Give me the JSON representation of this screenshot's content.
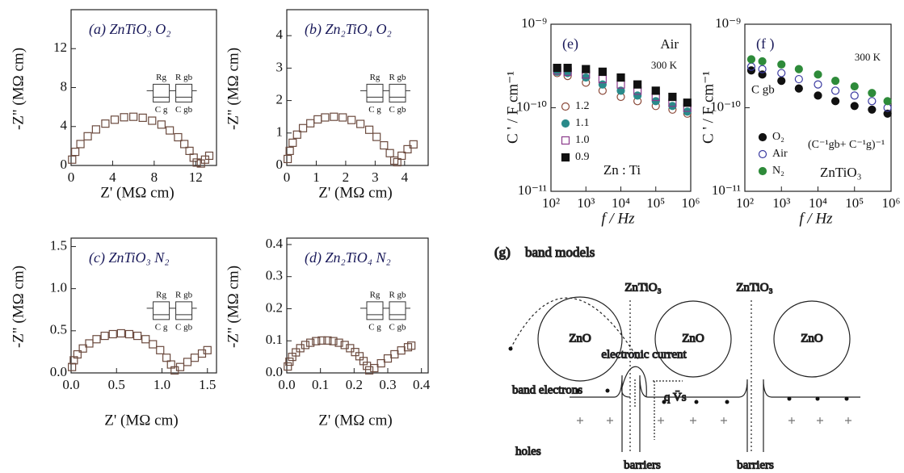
{
  "chart_data": [
    {
      "type": "scatter",
      "title": "(a) ZnTiO₃  O₂",
      "x_label": "Z' (MΩ cm)",
      "y_label": "-Z\" (MΩ cm)",
      "xlim": [
        0,
        14
      ],
      "ylim": [
        0,
        16
      ],
      "xticks": [
        0,
        4,
        8,
        12
      ],
      "yticks": [
        0,
        4,
        8,
        12
      ],
      "circuit_labels": [
        "Rg",
        "R gb",
        "C g",
        "C gb"
      ],
      "series": [
        {
          "color": "#6b4a3e",
          "marker": "open-square",
          "x": [
            0.1,
            0.4,
            0.9,
            1.6,
            2.4,
            3.3,
            4.2,
            5.1,
            6.0,
            6.9,
            7.8,
            8.7,
            9.5,
            10.3,
            10.9,
            11.4,
            11.8,
            12.1,
            12.5,
            12.9,
            13.3
          ],
          "values": [
            0.6,
            1.4,
            2.2,
            3.0,
            3.7,
            4.3,
            4.7,
            4.95,
            5.0,
            4.9,
            4.6,
            4.2,
            3.6,
            2.9,
            2.2,
            1.5,
            0.8,
            0.3,
            0.2,
            0.6,
            1.0
          ]
        }
      ]
    },
    {
      "type": "scatter",
      "title": "(b) Zn₂TiO₄  O₂",
      "x_label": "Z' (MΩ cm)",
      "y_label": "-Z\" (MΩ cm)",
      "xlim": [
        0,
        4.8
      ],
      "ylim": [
        0,
        4.8
      ],
      "xticks": [
        0,
        1,
        2,
        3,
        4
      ],
      "yticks": [
        0,
        1,
        2,
        3,
        4
      ],
      "circuit_labels": [
        "Rg",
        "R gb",
        "C g",
        "C gb"
      ],
      "series": [
        {
          "color": "#6b4a3e",
          "marker": "open-square",
          "x": [
            0.03,
            0.1,
            0.2,
            0.35,
            0.55,
            0.8,
            1.05,
            1.3,
            1.6,
            1.9,
            2.2,
            2.5,
            2.8,
            3.05,
            3.3,
            3.5,
            3.65,
            3.75,
            3.9,
            4.1,
            4.3
          ],
          "values": [
            0.2,
            0.45,
            0.7,
            0.95,
            1.15,
            1.3,
            1.42,
            1.48,
            1.5,
            1.48,
            1.4,
            1.28,
            1.1,
            0.88,
            0.62,
            0.38,
            0.15,
            0.1,
            0.3,
            0.5,
            0.65
          ]
        }
      ]
    },
    {
      "type": "scatter",
      "title": "(c) ZnTiO₃  N₂",
      "x_label": "Z' (MΩ cm)",
      "y_label": "-Z\" (MΩ cm)",
      "xlim": [
        0,
        1.6
      ],
      "ylim": [
        0,
        1.6
      ],
      "xticks": [
        {
          "value": 0,
          "label": "0.0"
        },
        0.5,
        {
          "value": 1,
          "label": "1.0"
        },
        1.5
      ],
      "yticks": [
        {
          "value": 0,
          "label": "0.0"
        },
        0.5,
        {
          "value": 1,
          "label": "1.0"
        },
        1.5
      ],
      "circuit_labels": [
        "Rg",
        "R gb",
        "C g",
        "C gb"
      ],
      "series": [
        {
          "color": "#6b4a3e",
          "marker": "open-square",
          "x": [
            0.01,
            0.03,
            0.07,
            0.13,
            0.2,
            0.28,
            0.37,
            0.46,
            0.55,
            0.64,
            0.73,
            0.82,
            0.9,
            0.98,
            1.05,
            1.1,
            1.14,
            1.2,
            1.28,
            1.36,
            1.44,
            1.5
          ],
          "values": [
            0.07,
            0.15,
            0.22,
            0.29,
            0.35,
            0.4,
            0.44,
            0.46,
            0.47,
            0.46,
            0.44,
            0.4,
            0.34,
            0.27,
            0.18,
            0.1,
            0.03,
            0.07,
            0.13,
            0.18,
            0.23,
            0.27
          ]
        }
      ]
    },
    {
      "type": "scatter",
      "title": "(d) Zn₂TiO₄  N₂",
      "x_label": "Z' (MΩ cm)",
      "y_label": "-Z\" (MΩ cm)",
      "xlim": [
        0,
        0.42
      ],
      "ylim": [
        0,
        0.42
      ],
      "xticks": [
        {
          "value": 0,
          "label": "0.0"
        },
        0.1,
        0.2,
        0.3,
        0.4
      ],
      "yticks": [
        {
          "value": 0,
          "label": "0.0"
        },
        0.1,
        0.2,
        0.3,
        0.4
      ],
      "circuit_labels": [
        "Rg",
        "R gb",
        "C g",
        "C gb"
      ],
      "series": [
        {
          "color": "#6b4a3e",
          "marker": "open-square",
          "x": [
            0.003,
            0.008,
            0.016,
            0.027,
            0.04,
            0.055,
            0.07,
            0.087,
            0.104,
            0.121,
            0.138,
            0.155,
            0.172,
            0.188,
            0.203,
            0.216,
            0.228,
            0.238,
            0.245,
            0.26,
            0.28,
            0.3,
            0.32,
            0.34,
            0.36,
            0.37
          ],
          "values": [
            0.02,
            0.035,
            0.05,
            0.064,
            0.077,
            0.087,
            0.094,
            0.099,
            0.101,
            0.101,
            0.099,
            0.094,
            0.087,
            0.077,
            0.065,
            0.052,
            0.037,
            0.022,
            0.008,
            0.015,
            0.03,
            0.045,
            0.058,
            0.07,
            0.08,
            0.085
          ]
        }
      ]
    },
    {
      "type": "logscatter",
      "title": "(e)",
      "x_label": "f / Hz",
      "y_label": "C ' / F cm⁻¹",
      "annotations": [
        "Air",
        "300 K",
        "Zn : Ti"
      ],
      "log_x": true,
      "log_y": true,
      "xlim": [
        100,
        1000000
      ],
      "ylim": [
        1e-11,
        1e-09
      ],
      "xticks": [
        {
          "value": 100,
          "label": "10²"
        },
        {
          "value": 1000,
          "label": "10³"
        },
        {
          "value": 10000,
          "label": "10⁴"
        },
        {
          "value": 100000,
          "label": "10⁵"
        },
        {
          "value": 1000000,
          "label": "10⁶"
        }
      ],
      "yticks": [
        {
          "value": 1e-11,
          "label": "10⁻¹¹"
        },
        {
          "value": 1e-10,
          "label": "10⁻¹⁰"
        },
        {
          "value": 1e-09,
          "label": "10⁻⁹"
        }
      ],
      "x": [
        150,
        300,
        1000,
        3000,
        10000,
        30000,
        100000,
        300000,
        800000
      ],
      "series": [
        {
          "name": "1.2",
          "color": "#8b4a3a",
          "marker": "open-circle",
          "values": [
            2.6e-10,
            2.4e-10,
            2e-10,
            1.6e-10,
            1.35e-10,
            1.2e-10,
            1.05e-10,
            9.5e-11,
            8.5e-11
          ]
        },
        {
          "name": "1.1",
          "color": "#2a8a8a",
          "marker": "filled-circle",
          "values": [
            2.7e-10,
            2.6e-10,
            2.3e-10,
            1.9e-10,
            1.6e-10,
            1.4e-10,
            1.2e-10,
            1.05e-10,
            9e-11
          ]
        },
        {
          "name": "1.0",
          "color": "#8a3a8a",
          "marker": "open-square",
          "values": [
            2.8e-10,
            2.7e-10,
            2.5e-10,
            2.2e-10,
            1.9e-10,
            1.6e-10,
            1.35e-10,
            1.15e-10,
            1e-10
          ]
        },
        {
          "name": "0.9",
          "color": "#111111",
          "marker": "filled-square",
          "values": [
            3e-10,
            3e-10,
            2.9e-10,
            2.7e-10,
            2.3e-10,
            1.9e-10,
            1.6e-10,
            1.35e-10,
            1.15e-10
          ]
        }
      ]
    },
    {
      "type": "logscatter",
      "title": "(f )",
      "x_label": "f / Hz",
      "y_label": "C ' / F cm⁻¹",
      "annotations": [
        "300 K",
        "C gb",
        "(C⁻¹gb+ C⁻¹g)⁻¹",
        "ZnTiO₃"
      ],
      "log_x": true,
      "log_y": true,
      "xlim": [
        100,
        1000000
      ],
      "ylim": [
        1e-11,
        1e-09
      ],
      "xticks": [
        {
          "value": 100,
          "label": "10²"
        },
        {
          "value": 1000,
          "label": "10³"
        },
        {
          "value": 10000,
          "label": "10⁴"
        },
        {
          "value": 100000,
          "label": "10⁵"
        },
        {
          "value": 1000000,
          "label": "10⁶"
        }
      ],
      "yticks": [
        {
          "value": 1e-11,
          "label": "10⁻¹¹"
        },
        {
          "value": 1e-10,
          "label": "10⁻¹⁰"
        },
        {
          "value": 1e-09,
          "label": "10⁻⁹"
        }
      ],
      "x": [
        150,
        300,
        1000,
        3000,
        10000,
        30000,
        100000,
        300000,
        800000
      ],
      "series": [
        {
          "name": "O₂",
          "color": "#111111",
          "marker": "filled-circle",
          "values": [
            2.8e-10,
            2.5e-10,
            2.1e-10,
            1.7e-10,
            1.4e-10,
            1.2e-10,
            1.05e-10,
            9.5e-11,
            8.5e-11
          ]
        },
        {
          "name": "Air",
          "color": "#3a3aa0",
          "marker": "open-circle",
          "values": [
            3.1e-10,
            2.9e-10,
            2.6e-10,
            2.2e-10,
            1.9e-10,
            1.6e-10,
            1.4e-10,
            1.2e-10,
            1e-10
          ]
        },
        {
          "name": "N₂",
          "color": "#2e8b3a",
          "marker": "filled-circle",
          "values": [
            3.8e-10,
            3.6e-10,
            3.3e-10,
            2.9e-10,
            2.5e-10,
            2.1e-10,
            1.8e-10,
            1.5e-10,
            1.2e-10
          ]
        }
      ]
    }
  ],
  "band_diagram": {
    "label": "(g)",
    "title": "band models",
    "grain_boundary_labels": [
      "ZnTiO₃",
      "ZnTiO₃"
    ],
    "grain_labels": [
      "ZnO",
      "ZnO",
      "ZnO"
    ],
    "current_label": "electronic current",
    "electrons_label": "band electrons",
    "barrier_height_label": "q V̄s",
    "holes_label": "holes",
    "barrier_labels": [
      "barriers",
      "barriers"
    ]
  }
}
